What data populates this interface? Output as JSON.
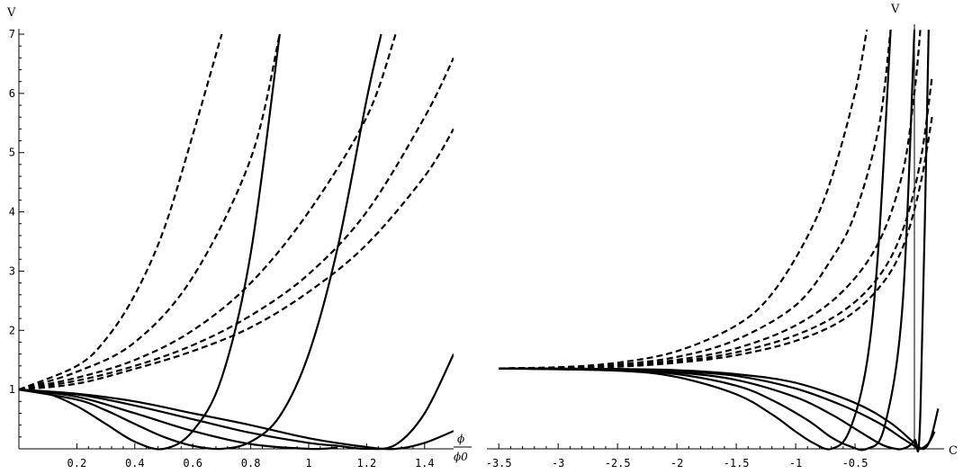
{
  "chart_data": [
    {
      "type": "line",
      "title": "",
      "ylabel": "V",
      "xlabel_numerator": "ϕ",
      "xlabel_denominator": "ϕ0",
      "xlim": [
        0,
        1.5
      ],
      "ylim": [
        0,
        7
      ],
      "x_ticks": [
        0.2,
        0.4,
        0.6,
        0.8,
        1.0,
        1.2,
        1.4
      ],
      "x_tick_labels": [
        "0.2",
        "0.4",
        "0.6",
        "0.8",
        "1",
        "1.2",
        "1.4"
      ],
      "y_ticks": [
        1,
        2,
        3,
        4,
        5,
        6,
        7
      ],
      "y_tick_labels": [
        "1",
        "2",
        "3",
        "4",
        "5",
        "6",
        "7"
      ],
      "series": [
        {
          "style": "dashed",
          "x": [
            0,
            0.2,
            0.3,
            0.4,
            0.5,
            0.6,
            0.7
          ],
          "y": [
            1.0,
            1.4,
            1.85,
            2.6,
            3.7,
            5.3,
            7.0
          ]
        },
        {
          "style": "dashed",
          "x": [
            0,
            0.2,
            0.4,
            0.6,
            0.8,
            0.9
          ],
          "y": [
            1.0,
            1.3,
            1.8,
            2.9,
            4.9,
            7.0
          ]
        },
        {
          "style": "dashed",
          "x": [
            0,
            0.2,
            0.4,
            0.6,
            0.8,
            1.0,
            1.2,
            1.3
          ],
          "y": [
            1.0,
            1.2,
            1.5,
            2.0,
            2.8,
            4.0,
            5.6,
            7.0
          ]
        },
        {
          "style": "dashed",
          "x": [
            0,
            0.2,
            0.4,
            0.6,
            0.8,
            1.0,
            1.2,
            1.4,
            1.5
          ],
          "y": [
            1.0,
            1.15,
            1.4,
            1.75,
            2.25,
            2.95,
            4.0,
            5.6,
            6.6
          ]
        },
        {
          "style": "dashed",
          "x": [
            0,
            0.2,
            0.4,
            0.6,
            0.8,
            1.0,
            1.2,
            1.4,
            1.5
          ],
          "y": [
            1.0,
            1.1,
            1.35,
            1.65,
            2.05,
            2.65,
            3.45,
            4.6,
            5.4
          ]
        },
        {
          "style": "solid",
          "x": [
            0,
            0.1,
            0.2,
            0.3,
            0.4,
            0.5,
            0.6,
            0.7,
            0.8,
            0.9
          ],
          "y": [
            1.0,
            0.93,
            0.72,
            0.42,
            0.12,
            0.0,
            0.3,
            1.2,
            3.3,
            7.0
          ]
        },
        {
          "style": "solid",
          "x": [
            0,
            0.2,
            0.3,
            0.4,
            0.5,
            0.6,
            0.7,
            0.8,
            0.9,
            1.0,
            1.1,
            1.2,
            1.25
          ],
          "y": [
            1.0,
            0.83,
            0.65,
            0.42,
            0.2,
            0.05,
            0.0,
            0.12,
            0.55,
            1.6,
            3.4,
            5.9,
            7.0
          ]
        },
        {
          "style": "solid",
          "x": [
            0,
            0.2,
            0.4,
            0.6,
            0.8,
            1.0,
            1.1
          ],
          "y": [
            1.0,
            0.88,
            0.6,
            0.3,
            0.08,
            0.0,
            0.02
          ]
        },
        {
          "style": "solid",
          "x": [
            0,
            0.2,
            0.4,
            0.6,
            0.8,
            1.0,
            1.1,
            1.2,
            1.3,
            1.4,
            1.5
          ],
          "y": [
            1.0,
            0.92,
            0.73,
            0.5,
            0.27,
            0.1,
            0.05,
            0.0,
            0.07,
            0.6,
            1.6
          ]
        },
        {
          "style": "solid",
          "x": [
            0,
            0.2,
            0.4,
            0.6,
            0.8,
            1.0,
            1.2,
            1.3,
            1.4,
            1.5
          ],
          "y": [
            1.0,
            0.93,
            0.8,
            0.6,
            0.4,
            0.18,
            0.03,
            0.0,
            0.1,
            0.3
          ]
        }
      ]
    },
    {
      "type": "line",
      "title": "",
      "ylabel": "V",
      "xlabel": "C",
      "xlim": [
        -3.6,
        0.25
      ],
      "ylim": [
        0,
        7.3
      ],
      "x_ticks": [
        -3.5,
        -3,
        -2.5,
        -2,
        -1.5,
        -1,
        -0.5
      ],
      "x_tick_labels": [
        "-3.5",
        "-3",
        "-2.5",
        "-2",
        "-1.5",
        "-1",
        "-0.5"
      ],
      "series": [
        {
          "style": "dashed",
          "x": [
            -3.5,
            -3.0,
            -2.5,
            -2.0,
            -1.5,
            -1.2,
            -0.9,
            -0.7,
            -0.5,
            -0.4
          ],
          "y": [
            1.4,
            1.42,
            1.5,
            1.7,
            2.15,
            2.7,
            3.7,
            4.7,
            6.2,
            7.3
          ]
        },
        {
          "style": "dashed",
          "x": [
            -3.5,
            -3.0,
            -2.5,
            -2.0,
            -1.5,
            -1.0,
            -0.7,
            -0.5,
            -0.3,
            -0.2
          ],
          "y": [
            1.4,
            1.42,
            1.47,
            1.6,
            1.9,
            2.5,
            3.3,
            4.1,
            5.6,
            7.3
          ]
        },
        {
          "style": "dashed",
          "x": [
            -3.5,
            -3.0,
            -2.5,
            -2.0,
            -1.5,
            -1.0,
            -0.6,
            -0.3,
            -0.1,
            0.0,
            0.05
          ],
          "y": [
            1.4,
            1.41,
            1.45,
            1.55,
            1.75,
            2.15,
            2.75,
            3.6,
            4.8,
            6.2,
            7.3
          ]
        },
        {
          "style": "dashed",
          "x": [
            -3.5,
            -3.0,
            -2.5,
            -2.0,
            -1.5,
            -1.0,
            -0.6,
            -0.3,
            -0.1,
            0.05,
            0.15
          ],
          "y": [
            1.4,
            1.41,
            1.44,
            1.52,
            1.68,
            1.98,
            2.4,
            3.0,
            3.8,
            5.0,
            6.5
          ]
        },
        {
          "style": "dashed",
          "x": [
            -3.5,
            -3.0,
            -2.5,
            -2.0,
            -1.5,
            -1.0,
            -0.6,
            -0.3,
            -0.1,
            0.05,
            0.15
          ],
          "y": [
            1.4,
            1.41,
            1.43,
            1.5,
            1.63,
            1.88,
            2.25,
            2.8,
            3.5,
            4.6,
            5.8
          ]
        },
        {
          "style": "solid",
          "x": [
            -3.5,
            -2.5,
            -2.0,
            -1.5,
            -1.2,
            -1.0,
            -0.85,
            -0.7,
            -0.55,
            -0.4,
            -0.3,
            -0.2
          ],
          "y": [
            1.4,
            1.36,
            1.25,
            0.95,
            0.6,
            0.3,
            0.1,
            0.0,
            0.3,
            1.5,
            3.6,
            7.3
          ]
        },
        {
          "style": "solid",
          "x": [
            -3.5,
            -2.5,
            -2.0,
            -1.5,
            -1.2,
            -0.9,
            -0.7,
            -0.55,
            -0.4,
            -0.25,
            -0.1,
            0.0
          ],
          "y": [
            1.4,
            1.37,
            1.3,
            1.1,
            0.85,
            0.5,
            0.2,
            0.05,
            0.0,
            0.4,
            2.5,
            7.3
          ]
        },
        {
          "style": "solid",
          "x": [
            -3.5,
            -2.5,
            -2.0,
            -1.5,
            -1.0,
            -0.7,
            -0.5,
            -0.3,
            -0.2,
            -0.1,
            0.0,
            0.05,
            0.12
          ],
          "y": [
            1.4,
            1.38,
            1.33,
            1.2,
            0.9,
            0.6,
            0.35,
            0.1,
            0.02,
            0.0,
            0.15,
            0.6,
            7.3
          ]
        },
        {
          "style": "solid",
          "x": [
            -3.5,
            -2.5,
            -2.0,
            -1.5,
            -1.0,
            -0.6,
            -0.3,
            -0.1,
            0.0,
            0.05,
            0.12,
            0.17
          ],
          "y": [
            1.4,
            1.39,
            1.35,
            1.27,
            1.05,
            0.75,
            0.45,
            0.18,
            0.05,
            0.0,
            0.1,
            0.3
          ]
        },
        {
          "style": "solid",
          "x": [
            -3.5,
            -2.5,
            -2.0,
            -1.5,
            -1.0,
            -0.5,
            -0.2,
            0.0,
            0.08,
            0.14,
            0.2
          ],
          "y": [
            1.4,
            1.39,
            1.37,
            1.3,
            1.15,
            0.8,
            0.45,
            0.1,
            0.0,
            0.2,
            0.7
          ]
        }
      ]
    }
  ]
}
